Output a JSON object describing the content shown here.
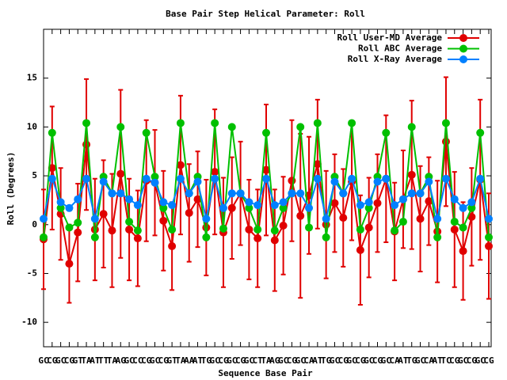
{
  "chart_data": {
    "type": "line",
    "title": "Base Pair Step Helical Parameter: Roll",
    "x_label": "Sequence Base Pair",
    "y_label": "Roll (Degrees)",
    "categories": [
      "GC",
      "CG",
      "GC",
      "CG",
      "GT",
      "TA",
      "AT",
      "TT",
      "TA",
      "AG",
      "GC",
      "CC",
      "CG",
      "GC",
      "CG",
      "GT",
      "TA",
      "AA",
      "AT",
      "TG",
      "GC",
      "CG",
      "GC",
      "CG",
      "GC",
      "CT",
      "TA",
      "AG",
      "GC",
      "CG",
      "GC",
      "CA",
      "AT",
      "TG",
      "GC",
      "CG",
      "GC",
      "CG",
      "GC",
      "CG",
      "GC",
      "CA",
      "AT",
      "TG",
      "GC",
      "CA",
      "AT",
      "TC",
      "CG",
      "GC",
      "CG",
      "GC",
      "CG"
    ],
    "ylim": [
      -12.5,
      20
    ],
    "yticks": [
      -10,
      -5,
      0,
      5,
      10,
      15
    ],
    "legend": "top-right",
    "series": [
      {
        "name": "Roll User-MD Average",
        "color": "#e00000",
        "values": [
          -1.5,
          5.8,
          1.1,
          -4.0,
          -0.8,
          8.2,
          -0.5,
          1.1,
          -0.6,
          5.2,
          -0.5,
          -1.4,
          4.5,
          4.3,
          0.4,
          -2.2,
          6.1,
          1.2,
          2.6,
          -0.3,
          5.4,
          -0.8,
          1.7,
          3.2,
          -0.5,
          -1.4,
          5.6,
          -1.6,
          -0.1,
          4.5,
          0.9,
          3.0,
          6.2,
          0.0,
          2.2,
          0.7,
          4.4,
          -2.6,
          -0.3,
          2.2,
          4.7,
          -0.7,
          2.6,
          5.1,
          0.6,
          2.4,
          -0.7,
          8.5,
          -0.5,
          -2.7,
          0.8,
          4.6,
          -2.2
        ],
        "errors": [
          5.1,
          6.3,
          4.7,
          4.0,
          5.0,
          6.7,
          5.2,
          5.5,
          5.8,
          8.6,
          5.2,
          4.9,
          6.2,
          5.4,
          5.1,
          4.5,
          7.1,
          5.0,
          4.9,
          4.9,
          6.4,
          5.6,
          5.2,
          5.3,
          5.1,
          5.0,
          6.7,
          5.2,
          5.0,
          6.2,
          8.4,
          6.0,
          6.6,
          5.5,
          5.0,
          5.0,
          6.0,
          5.6,
          5.1,
          5.0,
          6.5,
          5.0,
          5.0,
          7.6,
          5.4,
          4.5,
          5.2,
          6.6,
          5.9,
          5.0,
          5.0,
          8.2,
          5.4
        ]
      },
      {
        "name": "Roll ABC Average",
        "color": "#00c000",
        "values": [
          -1.3,
          9.4,
          1.7,
          -0.3,
          0.2,
          10.4,
          -1.3,
          4.9,
          3.2,
          10.0,
          0.3,
          -0.6,
          9.4,
          4.9,
          1.7,
          -0.5,
          10.4,
          3.2,
          4.9,
          -1.3,
          10.4,
          -0.4,
          10.0,
          3.2,
          1.7,
          -0.5,
          9.4,
          -0.6,
          1.7,
          3.2,
          10.0,
          -0.3,
          10.4,
          -1.3,
          4.9,
          3.2,
          10.4,
          -0.5,
          1.7,
          4.9,
          9.4,
          -0.6,
          0.3,
          10.0,
          3.2,
          4.9,
          -1.3,
          10.4,
          0.3,
          -0.3,
          1.7,
          9.4,
          -1.3
        ]
      },
      {
        "name": "Roll X-Ray Average",
        "color": "#0080ff",
        "values": [
          0.6,
          4.7,
          2.3,
          1.7,
          2.6,
          4.7,
          0.6,
          4.4,
          3.2,
          3.2,
          2.6,
          2.0,
          4.7,
          4.3,
          2.3,
          2.0,
          4.7,
          3.2,
          4.4,
          0.6,
          4.7,
          1.7,
          3.2,
          3.2,
          2.3,
          2.0,
          4.7,
          2.0,
          2.3,
          3.2,
          3.2,
          1.7,
          4.7,
          0.6,
          4.4,
          3.2,
          4.7,
          2.0,
          2.3,
          4.4,
          4.7,
          2.0,
          2.6,
          3.2,
          3.2,
          4.4,
          0.6,
          4.7,
          2.6,
          1.7,
          2.3,
          4.7,
          0.6
        ]
      }
    ]
  }
}
